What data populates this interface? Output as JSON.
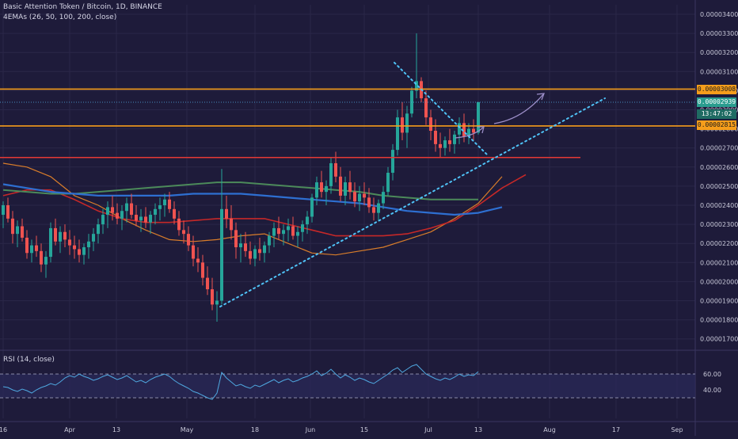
{
  "header": {
    "title": "Basic Attention Token / Bitcoin, 1D, BINANCE",
    "indicator": "4EMAs (26, 50, 100, 200, close)",
    "rsi_label": "RSI (14, close)"
  },
  "price_tags": {
    "resistance": "0.00003008",
    "last": "0.00002939",
    "countdown": "13:47:02",
    "support": "0.00002815"
  },
  "colors": {
    "background": "#1e1b3a",
    "up": "#26a69a",
    "down": "#ef5350",
    "orange_level": "#f59d1b",
    "red_level": "#e53935",
    "trendline": "#4fc3f7",
    "arrow": "#9c8ec8",
    "ema26": "#d97d2a",
    "ema50": "#c62828",
    "ema100": "#4c8a5a",
    "ema200": "#2e6fd1",
    "rsi_line": "#4fa8e0"
  },
  "chart_data": [
    {
      "type": "candlestick",
      "title": "Basic Attention Token / Bitcoin, 1D, BINANCE",
      "x_tick_labels": [
        "16",
        "Apr",
        "13",
        "May",
        "18",
        "Jun",
        "15",
        "Jul",
        "13",
        "Aug",
        "17",
        "Sep"
      ],
      "y_tick_labels": [
        "0.00003400",
        "0.00003300",
        "0.00003200",
        "0.00003100",
        "0.00003000",
        "0.00002900",
        "0.00002800",
        "0.00002700",
        "0.00002600",
        "0.00002500",
        "0.00002400",
        "0.00002300",
        "0.00002200",
        "0.00002100",
        "0.00002000",
        "0.00001900",
        "0.00001800",
        "0.00001700"
      ],
      "ylim": [
        1.65e-05,
        3.48e-05
      ],
      "grid": true,
      "series": [
        {
          "name": "4EMAs (26, 50, 100, 200, close)",
          "kind": "ema_group",
          "periods": [
            26,
            50,
            100,
            200
          ]
        }
      ],
      "ohlc_day_index_range": [
        0,
        118
      ],
      "ohlc": [
        [
          2.35,
          2.42,
          2.28,
          2.4
        ],
        [
          2.4,
          2.44,
          2.31,
          2.33
        ],
        [
          2.33,
          2.37,
          2.2,
          2.25
        ],
        [
          2.25,
          2.32,
          2.18,
          2.29
        ],
        [
          2.29,
          2.33,
          2.21,
          2.23
        ],
        [
          2.23,
          2.27,
          2.12,
          2.15
        ],
        [
          2.15,
          2.22,
          2.1,
          2.19
        ],
        [
          2.19,
          2.24,
          2.13,
          2.16
        ],
        [
          2.16,
          2.2,
          2.05,
          2.09
        ],
        [
          2.09,
          2.16,
          2.02,
          2.13
        ],
        [
          2.13,
          2.31,
          2.1,
          2.28
        ],
        [
          2.28,
          2.33,
          2.19,
          2.21
        ],
        [
          2.21,
          2.29,
          2.15,
          2.26
        ],
        [
          2.26,
          2.3,
          2.18,
          2.22
        ],
        [
          2.22,
          2.27,
          2.14,
          2.19
        ],
        [
          2.19,
          2.24,
          2.12,
          2.17
        ],
        [
          2.17,
          2.22,
          2.1,
          2.14
        ],
        [
          2.14,
          2.2,
          2.09,
          2.18
        ],
        [
          2.18,
          2.25,
          2.12,
          2.21
        ],
        [
          2.21,
          2.28,
          2.16,
          2.25
        ],
        [
          2.25,
          2.33,
          2.2,
          2.3
        ],
        [
          2.3,
          2.38,
          2.25,
          2.35
        ],
        [
          2.35,
          2.42,
          2.28,
          2.39
        ],
        [
          2.39,
          2.45,
          2.32,
          2.36
        ],
        [
          2.36,
          2.41,
          2.3,
          2.33
        ],
        [
          2.33,
          2.4,
          2.27,
          2.37
        ],
        [
          2.37,
          2.44,
          2.31,
          2.41
        ],
        [
          2.41,
          2.46,
          2.33,
          2.35
        ],
        [
          2.35,
          2.4,
          2.29,
          2.32
        ],
        [
          2.32,
          2.38,
          2.26,
          2.34
        ],
        [
          2.34,
          2.39,
          2.28,
          2.31
        ],
        [
          2.31,
          2.37,
          2.25,
          2.35
        ],
        [
          2.35,
          2.41,
          2.3,
          2.38
        ],
        [
          2.38,
          2.44,
          2.32,
          2.4
        ],
        [
          2.4,
          2.46,
          2.34,
          2.43
        ],
        [
          2.43,
          2.47,
          2.36,
          2.38
        ],
        [
          2.38,
          2.42,
          2.3,
          2.33
        ],
        [
          2.33,
          2.37,
          2.24,
          2.27
        ],
        [
          2.27,
          2.32,
          2.2,
          2.25
        ],
        [
          2.25,
          2.29,
          2.16,
          2.19
        ],
        [
          2.19,
          2.24,
          2.08,
          2.12
        ],
        [
          2.12,
          2.18,
          2.05,
          2.1
        ],
        [
          2.1,
          2.14,
          1.98,
          2.02
        ],
        [
          2.02,
          2.08,
          1.93,
          1.96
        ],
        [
          1.96,
          2.02,
          1.85,
          1.88
        ],
        [
          1.88,
          1.95,
          1.79,
          1.9
        ],
        [
          1.9,
          2.59,
          1.88,
          2.38
        ],
        [
          2.38,
          2.45,
          2.28,
          2.33
        ],
        [
          2.33,
          2.4,
          2.22,
          2.27
        ],
        [
          2.27,
          2.31,
          2.12,
          2.18
        ],
        [
          2.18,
          2.25,
          2.1,
          2.2
        ],
        [
          2.2,
          2.26,
          2.13,
          2.16
        ],
        [
          2.16,
          2.21,
          2.09,
          2.12
        ],
        [
          2.12,
          2.19,
          2.08,
          2.17
        ],
        [
          2.17,
          2.23,
          2.11,
          2.15
        ],
        [
          2.15,
          2.21,
          2.1,
          2.19
        ],
        [
          2.19,
          2.26,
          2.15,
          2.24
        ],
        [
          2.24,
          2.31,
          2.18,
          2.28
        ],
        [
          2.28,
          2.34,
          2.22,
          2.25
        ],
        [
          2.25,
          2.3,
          2.19,
          2.27
        ],
        [
          2.27,
          2.33,
          2.21,
          2.29
        ],
        [
          2.29,
          2.34,
          2.22,
          2.24
        ],
        [
          2.24,
          2.29,
          2.18,
          2.26
        ],
        [
          2.26,
          2.32,
          2.21,
          2.3
        ],
        [
          2.3,
          2.37,
          2.25,
          2.34
        ],
        [
          2.34,
          2.46,
          2.31,
          2.44
        ],
        [
          2.44,
          2.55,
          2.4,
          2.52
        ],
        [
          2.52,
          2.58,
          2.44,
          2.47
        ],
        [
          2.47,
          2.53,
          2.4,
          2.5
        ],
        [
          2.5,
          2.65,
          2.46,
          2.62
        ],
        [
          2.62,
          2.68,
          2.52,
          2.55
        ],
        [
          2.55,
          2.6,
          2.42,
          2.45
        ],
        [
          2.45,
          2.55,
          2.4,
          2.52
        ],
        [
          2.52,
          2.58,
          2.43,
          2.47
        ],
        [
          2.47,
          2.52,
          2.39,
          2.42
        ],
        [
          2.42,
          2.5,
          2.37,
          2.46
        ],
        [
          2.46,
          2.52,
          2.4,
          2.44
        ],
        [
          2.44,
          2.49,
          2.36,
          2.39
        ],
        [
          2.39,
          2.44,
          2.32,
          2.36
        ],
        [
          2.36,
          2.43,
          2.32,
          2.41
        ],
        [
          2.41,
          2.5,
          2.38,
          2.47
        ],
        [
          2.47,
          2.6,
          2.45,
          2.57
        ],
        [
          2.57,
          2.72,
          2.53,
          2.69
        ],
        [
          2.69,
          2.9,
          2.66,
          2.86
        ],
        [
          2.86,
          2.94,
          2.74,
          2.78
        ],
        [
          2.78,
          2.92,
          2.7,
          2.88
        ],
        [
          2.88,
          3.02,
          2.86,
          3.0
        ],
        [
          3.0,
          3.3,
          2.96,
          3.05
        ],
        [
          3.05,
          3.07,
          2.94,
          2.96
        ],
        [
          2.96,
          3.0,
          2.82,
          2.86
        ],
        [
          2.86,
          2.9,
          2.74,
          2.79
        ],
        [
          2.79,
          2.85,
          2.68,
          2.72
        ],
        [
          2.72,
          2.78,
          2.65,
          2.7
        ],
        [
          2.7,
          2.76,
          2.66,
          2.74
        ],
        [
          2.74,
          2.8,
          2.68,
          2.72
        ],
        [
          2.72,
          2.79,
          2.67,
          2.77
        ],
        [
          2.77,
          2.86,
          2.72,
          2.83
        ],
        [
          2.83,
          2.88,
          2.73,
          2.76
        ],
        [
          2.76,
          2.83,
          2.72,
          2.8
        ],
        [
          2.8,
          2.85,
          2.74,
          2.78
        ],
        [
          2.78,
          2.94,
          2.77,
          2.94
        ]
      ],
      "ema": {
        "26": [
          2.62,
          2.6,
          2.55,
          2.45,
          2.4,
          2.33,
          2.27,
          2.22,
          2.21,
          2.22,
          2.24,
          2.25,
          2.2,
          2.15,
          2.14,
          2.16,
          2.18,
          2.22,
          2.26,
          2.33,
          2.41,
          2.55
        ],
        "50": [
          2.45,
          2.48,
          2.48,
          2.43,
          2.37,
          2.33,
          2.31,
          2.31,
          2.32,
          2.33,
          2.33,
          2.33,
          2.3,
          2.27,
          2.24,
          2.24,
          2.24,
          2.25,
          2.28,
          2.32,
          2.4,
          2.49,
          2.56
        ],
        "100": [
          2.48,
          2.47,
          2.46,
          2.46,
          2.47,
          2.48,
          2.49,
          2.5,
          2.51,
          2.52,
          2.52,
          2.51,
          2.5,
          2.49,
          2.48,
          2.47,
          2.45,
          2.44,
          2.43,
          2.43,
          2.43
        ],
        "200": [
          2.51,
          2.49,
          2.47,
          2.46,
          2.45,
          2.45,
          2.45,
          2.45,
          2.46,
          2.46,
          2.46,
          2.45,
          2.44,
          2.43,
          2.42,
          2.41,
          2.39,
          2.37,
          2.36,
          2.35,
          2.36,
          2.39
        ]
      },
      "annotations": {
        "resistance_level": 3.008,
        "support_level": 2.815,
        "lower_red_level": 2.65,
        "unit_note": "prices above in 1e-5 BTC"
      }
    },
    {
      "type": "line",
      "title": "RSI (14, close)",
      "y_tick_labels": [
        "60.00",
        "40.00"
      ],
      "ylim": [
        28,
        78
      ],
      "bands": [
        30,
        60
      ],
      "values": [
        44,
        43,
        40,
        38,
        41,
        39,
        36,
        40,
        43,
        45,
        48,
        46,
        50,
        55,
        58,
        56,
        60,
        57,
        55,
        52,
        54,
        57,
        59,
        56,
        53,
        55,
        58,
        54,
        50,
        52,
        49,
        53,
        56,
        58,
        60,
        57,
        52,
        48,
        45,
        42,
        38,
        36,
        33,
        30,
        28,
        36,
        62,
        55,
        50,
        45,
        47,
        44,
        42,
        46,
        44,
        47,
        50,
        53,
        49,
        52,
        54,
        50,
        52,
        55,
        57,
        60,
        64,
        58,
        61,
        66,
        60,
        55,
        59,
        56,
        52,
        55,
        53,
        50,
        48,
        52,
        56,
        60,
        65,
        68,
        62,
        66,
        70,
        72,
        66,
        60,
        57,
        54,
        52,
        55,
        53,
        56,
        60,
        57,
        59,
        58,
        63
      ]
    }
  ]
}
